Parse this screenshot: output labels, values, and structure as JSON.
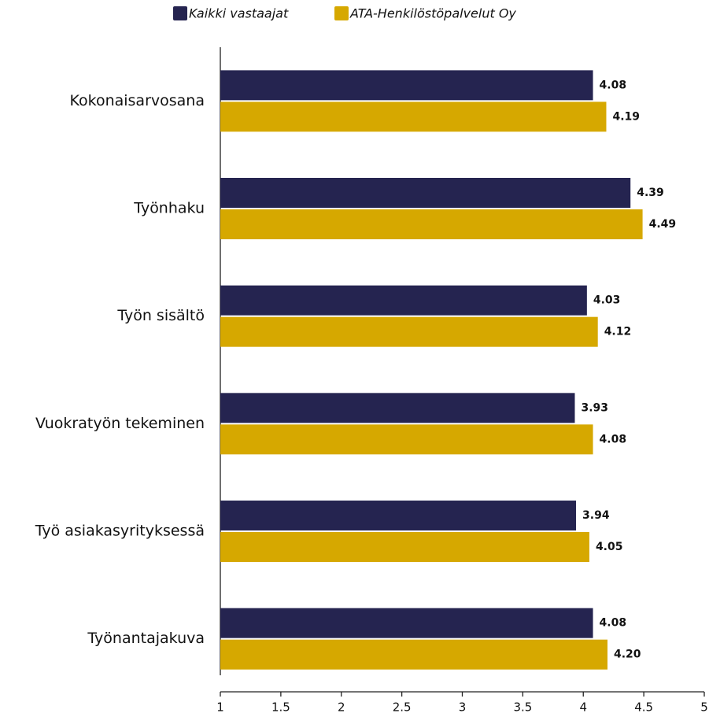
{
  "chart_data": {
    "type": "barh",
    "categories": [
      "Kokonaisarvosana",
      "Työnhaku",
      "Työn sisältö",
      "Vuokratyön tekeminen",
      "Työ asiakasyrityksessä",
      "Työnantajakuva"
    ],
    "series": [
      {
        "name": "Kaikki vastaajat",
        "color": "#252450",
        "values": [
          4.08,
          4.39,
          4.03,
          3.93,
          3.94,
          4.08
        ],
        "value_labels": [
          "4.08",
          "4.39",
          "4.03",
          "3.93",
          "3.94",
          "4.08"
        ]
      },
      {
        "name": "ATA-Henkilöstöpalvelut Oy",
        "color": "#d6a800",
        "values": [
          4.19,
          4.49,
          4.12,
          4.08,
          4.05,
          4.2
        ],
        "value_labels": [
          "4.19",
          "4.49",
          "4.12",
          "4.08",
          "4.05",
          "4.20"
        ]
      }
    ],
    "xlim": [
      1,
      5
    ],
    "xticks": [
      1,
      1.5,
      2,
      2.5,
      3,
      3.5,
      4,
      4.5,
      5
    ],
    "legend": "top"
  }
}
